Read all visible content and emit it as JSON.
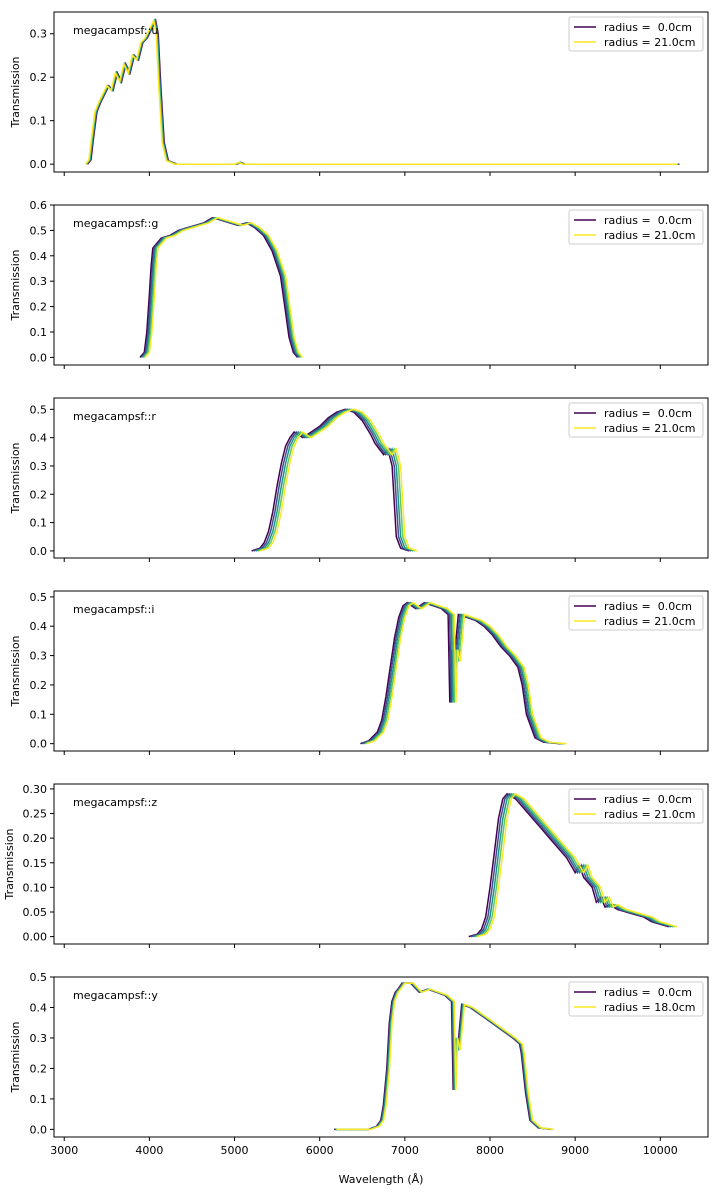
{
  "figure": {
    "xlabel": "Wavelength (Å)",
    "ylabel": "Transmission",
    "xticks": [
      3000,
      4000,
      5000,
      6000,
      7000,
      8000,
      9000,
      10000
    ],
    "xlim": [
      2880,
      10560
    ]
  },
  "chart_data": [
    {
      "type": "line",
      "annotation": "megacampsf::u",
      "legend_position": "upper-right",
      "legend": [
        "radius =  0.0cm",
        "radius = 21.0cm"
      ],
      "ylim": [
        -0.018,
        0.35
      ],
      "yticks": [
        0.0,
        0.1,
        0.2,
        0.3
      ],
      "yticklabels": [
        "0.0",
        "0.1",
        "0.2",
        "0.3"
      ],
      "series_colors": [
        "#440154",
        "#3b528b",
        "#21918c",
        "#5ec962",
        "#fde725"
      ],
      "x": [
        3250,
        3290,
        3320,
        3360,
        3400,
        3450,
        3500,
        3550,
        3600,
        3650,
        3700,
        3750,
        3800,
        3850,
        3900,
        3950,
        4000,
        4050,
        4080,
        4110,
        4150,
        4200,
        4300,
        5000,
        5050,
        5100,
        6000,
        8000,
        10200
      ],
      "y": [
        0.0,
        0.01,
        0.06,
        0.12,
        0.14,
        0.16,
        0.18,
        0.17,
        0.21,
        0.19,
        0.23,
        0.21,
        0.25,
        0.24,
        0.28,
        0.29,
        0.31,
        0.33,
        0.3,
        0.18,
        0.05,
        0.008,
        0.0,
        0.0,
        0.004,
        0.0,
        0.0,
        0.0,
        0.0
      ],
      "shift_step": 6
    },
    {
      "type": "line",
      "annotation": "megacampsf::g",
      "legend_position": "upper-right",
      "legend": [
        "radius =  0.0cm",
        "radius = 21.0cm"
      ],
      "ylim": [
        -0.03,
        0.6
      ],
      "yticks": [
        0.0,
        0.1,
        0.2,
        0.3,
        0.4,
        0.5,
        0.6
      ],
      "yticklabels": [
        "0.0",
        "0.1",
        "0.2",
        "0.3",
        "0.4",
        "0.5",
        "0.6"
      ],
      "series_colors": [
        "#440154",
        "#3b528b",
        "#21918c",
        "#5ec962",
        "#fde725"
      ],
      "x": [
        3950,
        4000,
        4030,
        4060,
        4080,
        4100,
        4150,
        4200,
        4300,
        4400,
        4500,
        4600,
        4700,
        4800,
        4900,
        5000,
        5100,
        5200,
        5300,
        5400,
        5500,
        5600,
        5650,
        5700,
        5750,
        5800
      ],
      "y": [
        0.0,
        0.02,
        0.1,
        0.25,
        0.36,
        0.43,
        0.45,
        0.47,
        0.48,
        0.5,
        0.51,
        0.52,
        0.53,
        0.55,
        0.54,
        0.53,
        0.52,
        0.53,
        0.51,
        0.48,
        0.42,
        0.32,
        0.2,
        0.08,
        0.02,
        0.0
      ],
      "shift_step": -15
    },
    {
      "type": "line",
      "annotation": "megacampsf::r",
      "legend_position": "upper-right",
      "legend": [
        "radius =  0.0cm",
        "radius = 21.0cm"
      ],
      "ylim": [
        -0.025,
        0.54
      ],
      "yticks": [
        0.0,
        0.1,
        0.2,
        0.3,
        0.4,
        0.5
      ],
      "yticklabels": [
        "0.0",
        "0.1",
        "0.2",
        "0.3",
        "0.4",
        "0.5"
      ],
      "series_colors": [
        "#440154",
        "#3b528b",
        "#21918c",
        "#5ec962",
        "#fde725"
      ],
      "x": [
        5300,
        5400,
        5450,
        5500,
        5550,
        5600,
        5650,
        5700,
        5750,
        5800,
        5900,
        6000,
        6100,
        6200,
        6300,
        6400,
        6500,
        6600,
        6700,
        6750,
        6800,
        6850,
        6900,
        6950,
        7000,
        7050,
        7150
      ],
      "y": [
        0.0,
        0.01,
        0.03,
        0.07,
        0.14,
        0.23,
        0.31,
        0.37,
        0.4,
        0.42,
        0.4,
        0.42,
        0.44,
        0.47,
        0.49,
        0.5,
        0.49,
        0.46,
        0.41,
        0.38,
        0.36,
        0.34,
        0.36,
        0.3,
        0.05,
        0.01,
        0.0
      ],
      "shift_step": -25
    },
    {
      "type": "line",
      "annotation": "megacampsf::i",
      "legend_position": "upper-right",
      "legend": [
        "radius =  0.0cm",
        "radius = 21.0cm"
      ],
      "ylim": [
        -0.025,
        0.52
      ],
      "yticks": [
        0.0,
        0.1,
        0.2,
        0.3,
        0.4,
        0.5
      ],
      "yticklabels": [
        "0.0",
        "0.1",
        "0.2",
        "0.3",
        "0.4",
        "0.5"
      ],
      "series_colors": [
        "#440154",
        "#3b528b",
        "#21918c",
        "#5ec962",
        "#fde725"
      ],
      "x": [
        6550,
        6650,
        6750,
        6800,
        6850,
        6900,
        6950,
        7000,
        7050,
        7100,
        7150,
        7200,
        7300,
        7400,
        7500,
        7580,
        7600,
        7620,
        7650,
        7700,
        7800,
        7900,
        8000,
        8100,
        8200,
        8300,
        8400,
        8450,
        8500,
        8600,
        8700,
        8900
      ],
      "y": [
        0.0,
        0.01,
        0.04,
        0.08,
        0.16,
        0.26,
        0.36,
        0.43,
        0.47,
        0.48,
        0.47,
        0.46,
        0.48,
        0.47,
        0.46,
        0.44,
        0.14,
        0.32,
        0.28,
        0.44,
        0.43,
        0.42,
        0.4,
        0.37,
        0.33,
        0.3,
        0.26,
        0.2,
        0.1,
        0.02,
        0.005,
        0.0
      ],
      "shift_step": -18
    },
    {
      "type": "line",
      "annotation": "megacampsf::z",
      "legend_position": "upper-right",
      "legend": [
        "radius =  0.0cm",
        "radius = 21.0cm"
      ],
      "ylim": [
        -0.015,
        0.31
      ],
      "yticks": [
        0.0,
        0.05,
        0.1,
        0.15,
        0.2,
        0.25,
        0.3
      ],
      "yticklabels": [
        "0.00",
        "0.05",
        "0.10",
        "0.15",
        "0.20",
        "0.25",
        "0.30"
      ],
      "series_colors": [
        "#440154",
        "#3b528b",
        "#21918c",
        "#5ec962",
        "#fde725"
      ],
      "x": [
        7850,
        7950,
        8000,
        8050,
        8100,
        8150,
        8200,
        8250,
        8300,
        8400,
        8500,
        8600,
        8700,
        8800,
        8900,
        9000,
        9100,
        9150,
        9200,
        9300,
        9350,
        9400,
        9450,
        9500,
        9600,
        9700,
        9800,
        9900,
        10000,
        10100,
        10200
      ],
      "y": [
        0.0,
        0.005,
        0.015,
        0.04,
        0.1,
        0.17,
        0.24,
        0.28,
        0.29,
        0.28,
        0.26,
        0.24,
        0.22,
        0.2,
        0.18,
        0.16,
        0.13,
        0.145,
        0.12,
        0.1,
        0.07,
        0.08,
        0.06,
        0.065,
        0.055,
        0.05,
        0.045,
        0.04,
        0.03,
        0.025,
        0.02
      ],
      "shift_step": -25
    },
    {
      "type": "line",
      "annotation": "megacampsf::y",
      "legend_position": "upper-right",
      "legend": [
        "radius =  0.0cm",
        "radius = 18.0cm"
      ],
      "ylim": [
        -0.025,
        0.5
      ],
      "yticks": [
        0.0,
        0.1,
        0.2,
        0.3,
        0.4,
        0.5
      ],
      "yticklabels": [
        "0.0",
        "0.1",
        "0.2",
        "0.3",
        "0.4",
        "0.5"
      ],
      "series_colors": [
        "#440154",
        "#3b528b",
        "#21918c",
        "#5ec962",
        "#fde725"
      ],
      "x": [
        6200,
        6600,
        6700,
        6750,
        6780,
        6820,
        6850,
        6880,
        6920,
        6950,
        7000,
        7100,
        7200,
        7300,
        7400,
        7500,
        7580,
        7600,
        7620,
        7650,
        7700,
        7800,
        7900,
        8000,
        8100,
        8200,
        8300,
        8380,
        8400,
        8450,
        8500,
        8600,
        8750
      ],
      "y": [
        0.0,
        0.0,
        0.01,
        0.03,
        0.08,
        0.2,
        0.35,
        0.42,
        0.45,
        0.46,
        0.48,
        0.48,
        0.45,
        0.46,
        0.45,
        0.44,
        0.42,
        0.13,
        0.3,
        0.26,
        0.41,
        0.4,
        0.38,
        0.36,
        0.34,
        0.32,
        0.3,
        0.28,
        0.25,
        0.12,
        0.03,
        0.005,
        0.0
      ],
      "shift_step": -8
    }
  ]
}
